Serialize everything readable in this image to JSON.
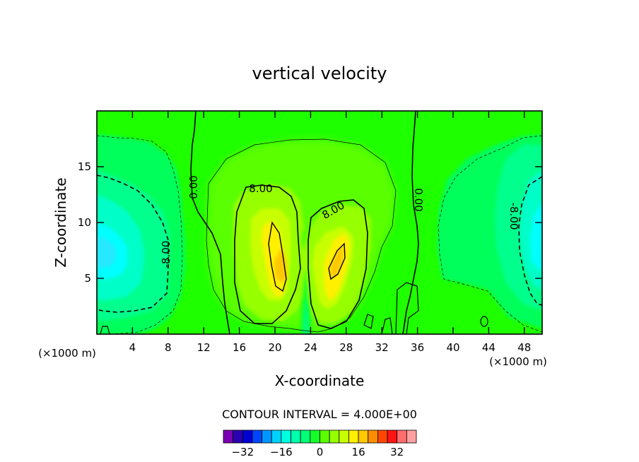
{
  "chart_data": {
    "type": "contour",
    "title": "vertical velocity",
    "xlabel": "X-coordinate",
    "ylabel": "Z-coordinate",
    "x_unit": "(×1000 m)",
    "z_unit": "(×1000 m)",
    "xlim": [
      0,
      50
    ],
    "ylim": [
      0,
      20
    ],
    "x_ticks": [
      4,
      8,
      12,
      16,
      20,
      24,
      28,
      32,
      36,
      40,
      44,
      48
    ],
    "y_ticks": [
      5,
      10,
      15
    ],
    "contour_interval_text": "CONTOUR INTERVAL = 4.000E+00",
    "contour_labels": [
      {
        "value": "0.00",
        "x": 11,
        "z": 13,
        "rotation": -90
      },
      {
        "value": "8.00",
        "x": 19,
        "z": 13,
        "rotation": 0
      },
      {
        "value": "8.00",
        "x": 26.5,
        "z": 11,
        "rotation": -30
      },
      {
        "value": "0.00",
        "x": 36.5,
        "z": 12,
        "rotation": 90
      },
      {
        "value": "-8.00",
        "x": 7.6,
        "z": 7,
        "rotation": -90
      },
      {
        "value": "-8.00",
        "x": 46.5,
        "z": 10.5,
        "rotation": 90
      }
    ],
    "colorbar": {
      "levels": [
        -36,
        -32,
        -28,
        -24,
        -20,
        -16,
        -12,
        -8,
        -4,
        0,
        4,
        8,
        12,
        16,
        20,
        24,
        28,
        32,
        36
      ],
      "colors": [
        "#7a00b4",
        "#2a00b0",
        "#0000d2",
        "#0046ff",
        "#0096ff",
        "#00d2ff",
        "#00ffe1",
        "#00ffaa",
        "#00ff78",
        "#14ff2a",
        "#5aff00",
        "#96ff00",
        "#c8ff00",
        "#fff000",
        "#ffc800",
        "#ff8c00",
        "#ff4600",
        "#ff1414",
        "#ff6e6e",
        "#ffa0a0"
      ],
      "tick_labels": [
        "−32",
        "−16",
        "0",
        "16",
        "32"
      ],
      "tick_values": [
        -32,
        -16,
        0,
        16,
        32
      ]
    },
    "background_color": "#1eff00",
    "contour_color": "#000000"
  }
}
